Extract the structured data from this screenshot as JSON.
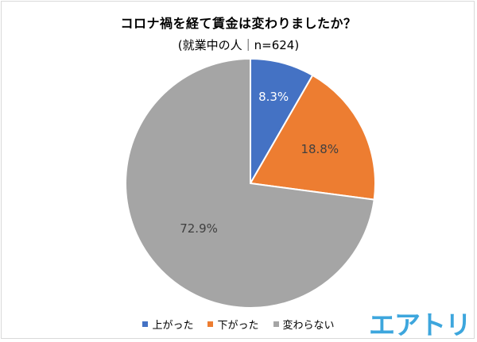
{
  "chart_data": {
    "type": "pie",
    "title": "コロナ禍を経て賃金は変わりましたか？",
    "subtitle": "(就業中の人｜n=624)",
    "slices": [
      {
        "name": "上がった",
        "value": 8.3,
        "label": "8.3%",
        "color": "#4472c4"
      },
      {
        "name": "下がった",
        "value": 18.8,
        "label": "18.8%",
        "color": "#ed7d31"
      },
      {
        "name": "変わらない",
        "value": 72.9,
        "label": "72.9%",
        "color": "#a5a5a5"
      }
    ],
    "start_angle": "12 o'clock",
    "direction": "clockwise",
    "legend_position": "bottom"
  },
  "brand": {
    "logo_text": "エアトリ",
    "color": "#3da6dd"
  }
}
